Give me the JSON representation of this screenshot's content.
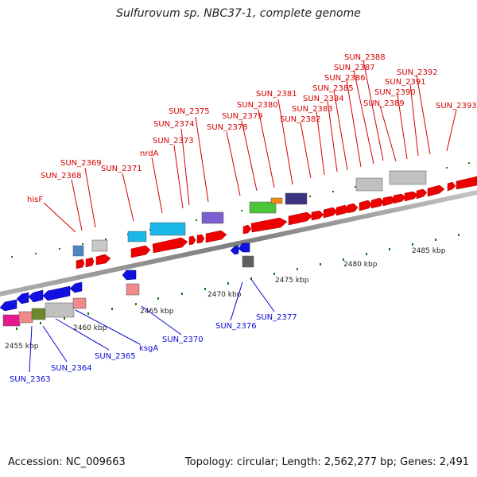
{
  "title": "Sulfurovum sp. NBC37-1, complete genome",
  "footer": {
    "accession": "Accession: NC_009663",
    "summary": "Topology: circular; Length: 2,562,277 bp; Genes: 2,491"
  },
  "scale_labels": [
    "2455 kbp",
    "2460 kbp",
    "2465 kbp",
    "2470 kbp",
    "2475 kbp",
    "2480 kbp",
    "2485 kbp"
  ],
  "top_labels": [
    "hisF",
    "SUN_2368",
    "SUN_2369",
    "SUN_2371",
    "nrdA",
    "SUN_2373",
    "SUN_2374",
    "SUN_2375",
    "SUN_2378",
    "SUN_2379",
    "SUN_2380",
    "SUN_2381",
    "SUN_2382",
    "SUN_2383",
    "SUN_2384",
    "SUN_2385",
    "SUN_2386",
    "SUN_2387",
    "SUN_2388",
    "SUN_2389",
    "SUN_2390",
    "SUN_2391",
    "SUN_2392",
    "SUN_2393"
  ],
  "bottom_labels": [
    "SUN_2363",
    "SUN_2364",
    "SUN_2365",
    "ksgA",
    "SUN_2370",
    "SUN_2376",
    "SUN_2377"
  ],
  "colors": {
    "forward_gene": "#ee0000",
    "reverse_gene": "#1010e0",
    "backbone": "#8a8a8a",
    "tick": "#0a7a0a"
  }
}
